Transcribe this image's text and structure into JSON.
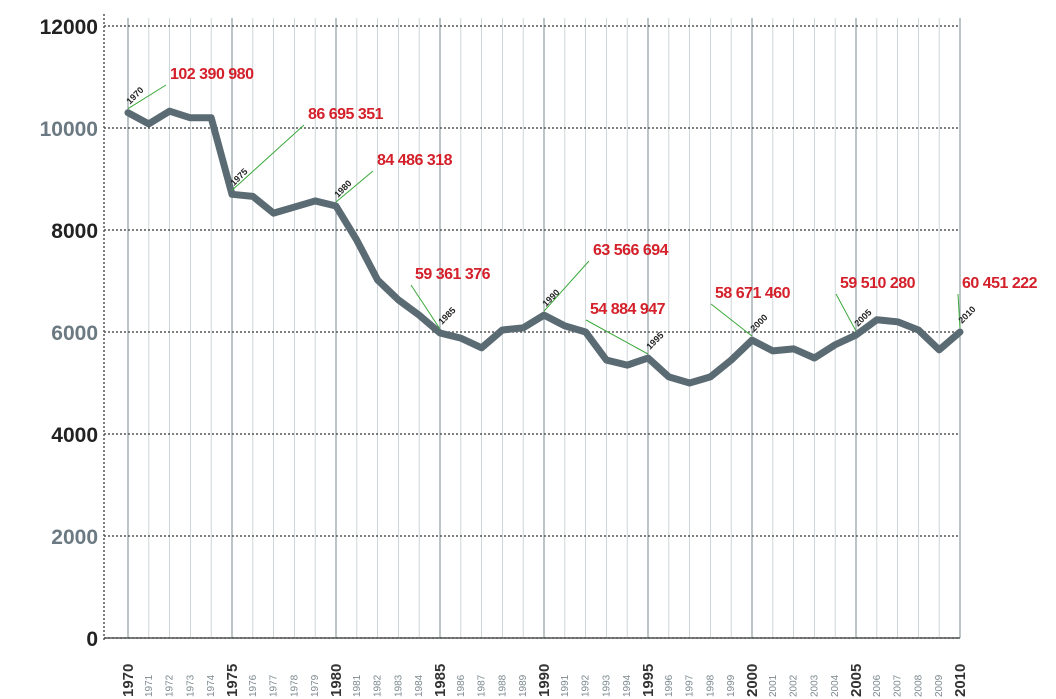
{
  "chart_data": {
    "type": "line",
    "categories": [
      "1970",
      "1971",
      "1972",
      "1973",
      "1974",
      "1975",
      "1976",
      "1977",
      "1978",
      "1979",
      "1980",
      "1981",
      "1982",
      "1983",
      "1984",
      "1985",
      "1986",
      "1987",
      "1988",
      "1989",
      "1990",
      "1991",
      "1992",
      "1993",
      "1994",
      "1995",
      "1996",
      "1997",
      "1998",
      "1999",
      "2000",
      "2001",
      "2002",
      "2003",
      "2004",
      "2005",
      "2006",
      "2007",
      "2008",
      "2009",
      "2010"
    ],
    "series": [
      {
        "color": "#5b6b73",
        "values": [
          10300,
          10080,
          10330,
          10200,
          10200,
          8700,
          8660,
          8330,
          8450,
          8570,
          8470,
          7800,
          7020,
          6630,
          6330,
          5980,
          5880,
          5690,
          6040,
          6080,
          6330,
          6120,
          6000,
          5450,
          5350,
          5490,
          5120,
          5000,
          5120,
          5450,
          5840,
          5630,
          5670,
          5490,
          5750,
          5940,
          6240,
          6200,
          6040,
          5650,
          6000
        ]
      }
    ],
    "ylim": [
      0,
      12000
    ],
    "yticks": [
      0,
      2000,
      4000,
      6000,
      8000,
      10000,
      12000
    ],
    "grid": true,
    "annotations": [
      {
        "label": "1970",
        "text": "102 390 980"
      },
      {
        "label": "1975",
        "text": "86 695 351"
      },
      {
        "label": "1980",
        "text": "84 486 318"
      },
      {
        "label": "1985",
        "text": "59 361 376"
      },
      {
        "label": "1990",
        "text": "63 566 694"
      },
      {
        "label": "1995",
        "text": "54 884 947"
      },
      {
        "label": "2000",
        "text": "58 671 460"
      },
      {
        "label": "2005",
        "text": "59 510 280"
      },
      {
        "label": "2010",
        "text": "60 451 222"
      }
    ]
  }
}
